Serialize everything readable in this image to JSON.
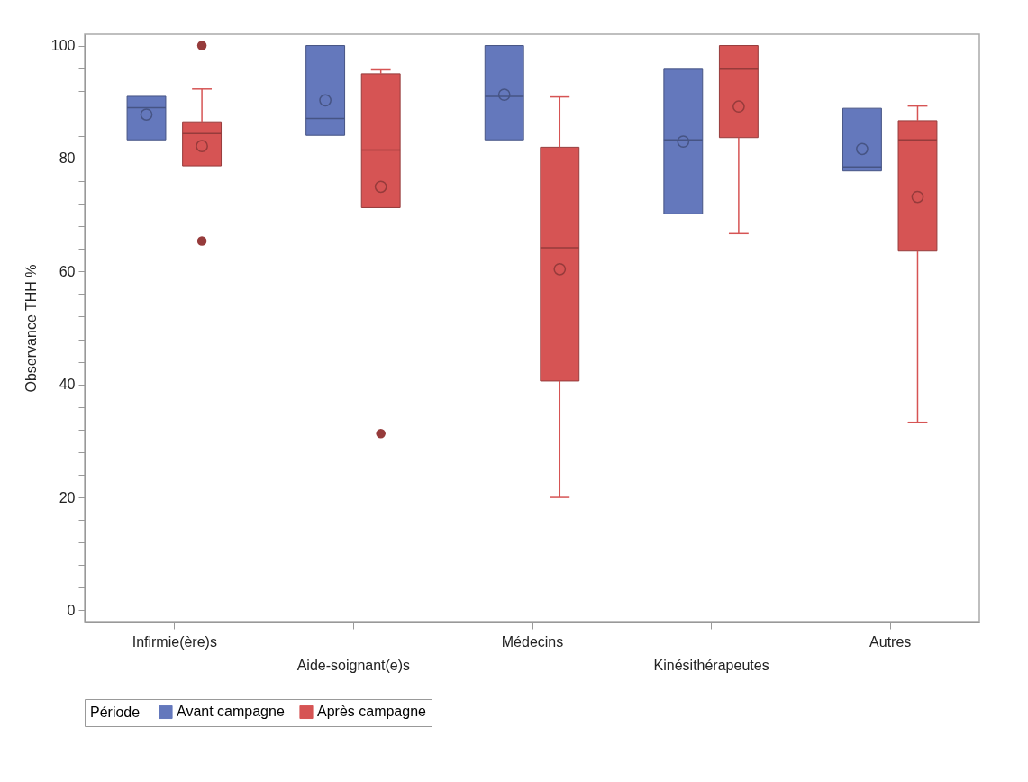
{
  "chart_data": {
    "type": "box",
    "ylabel": "Observance THH %",
    "legend_title": "Période",
    "legend": "bottom",
    "grid": false,
    "categories": [
      "Infirmie(ère)s",
      "Aide-soignant(e)s",
      "Médecins",
      "Kinésithérapeutes",
      "Autres"
    ],
    "ylim": [
      -2,
      102
    ],
    "yticks": [
      0,
      {
        "value": 4,
        "label": null
      },
      {
        "value": 8,
        "label": null
      },
      {
        "value": 12,
        "label": null
      },
      {
        "value": 16,
        "label": null
      },
      20,
      {
        "value": 24,
        "label": null
      },
      {
        "value": 28,
        "label": null
      },
      {
        "value": 32,
        "label": null
      },
      {
        "value": 36,
        "label": null
      },
      40,
      {
        "value": 44,
        "label": null
      },
      {
        "value": 48,
        "label": null
      },
      {
        "value": 52,
        "label": null
      },
      {
        "value": 56,
        "label": null
      },
      60,
      {
        "value": 64,
        "label": null
      },
      {
        "value": 68,
        "label": null
      },
      {
        "value": 72,
        "label": null
      },
      {
        "value": 76,
        "label": null
      },
      80,
      {
        "value": 84,
        "label": null
      },
      {
        "value": 88,
        "label": null
      },
      {
        "value": 92,
        "label": null
      },
      {
        "value": 96,
        "label": null
      },
      100
    ],
    "series": [
      {
        "name": "Avant campagne",
        "color": "#6478bc",
        "boxes": [
          {
            "low": 83.3,
            "q1": 83.3,
            "median": 89,
            "q3": 91,
            "high": 91,
            "mean": 87.8
          },
          {
            "low": 84.1,
            "q1": 84.1,
            "median": 87.1,
            "q3": 100,
            "high": 100,
            "mean": 90.3
          },
          {
            "low": 83.3,
            "q1": 83.3,
            "median": 91,
            "q3": 100,
            "high": 100,
            "mean": 91.3
          },
          {
            "low": 70.2,
            "q1": 70.2,
            "median": 83.3,
            "q3": 95.8,
            "high": 95.8,
            "mean": 83
          },
          {
            "low": 77.8,
            "q1": 77.8,
            "median": 78.5,
            "q3": 88.9,
            "high": 88.9,
            "mean": 81.7
          }
        ]
      },
      {
        "name": "Après campagne",
        "color": "#d65454",
        "boxes": [
          {
            "low": 78.7,
            "q1": 78.7,
            "median": 84.4,
            "q3": 86.5,
            "high": 92.3,
            "mean": 82.2,
            "outliers": [
              100,
              65.4
            ]
          },
          {
            "low": 71.3,
            "q1": 71.3,
            "median": 81.5,
            "q3": 95,
            "high": 95.7,
            "mean": 75,
            "outliers": [
              31.3
            ]
          },
          {
            "low": 20,
            "q1": 40.6,
            "median": 64.2,
            "q3": 82,
            "high": 90.9,
            "mean": 60.4
          },
          {
            "low": 66.7,
            "q1": 83.7,
            "median": 95.8,
            "q3": 100,
            "high": 100,
            "mean": 89.2
          },
          {
            "low": 33.3,
            "q1": 63.6,
            "median": 83.3,
            "q3": 86.7,
            "high": 89.3,
            "mean": 73.2
          }
        ]
      }
    ]
  }
}
